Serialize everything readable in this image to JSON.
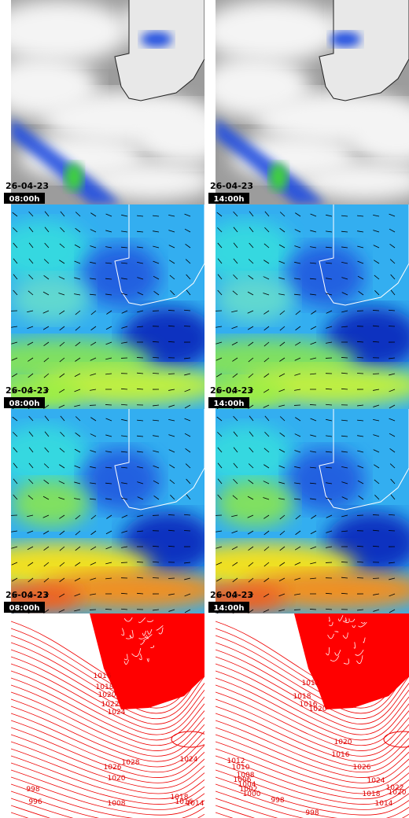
{
  "panels": [
    {
      "date": "26-04-23",
      "time": "08:00h"
    },
    {
      "date": "26-04-23",
      "time": "14:00h"
    },
    {
      "date": "26-04-23",
      "time": "08:00h"
    },
    {
      "date": "26-04-23",
      "time": "14:00h"
    },
    {
      "date": "26-04-23",
      "time": "08:00h"
    },
    {
      "date": "26-04-23",
      "time": "14:00h"
    }
  ],
  "isobars": [
    {
      "labels": [
        1016,
        1018,
        1020,
        1022,
        1024,
        1028,
        1026,
        1020,
        1024,
        1018,
        1016,
        1014,
        998,
        996,
        1008
      ]
    },
    {
      "labels": [
        1012,
        1018,
        1016,
        1020,
        1020,
        1016,
        1012,
        1010,
        1008,
        1006,
        1004,
        1002,
        1000,
        998,
        1026,
        1024,
        1022,
        1020,
        1018,
        1014,
        998
      ]
    }
  ]
}
